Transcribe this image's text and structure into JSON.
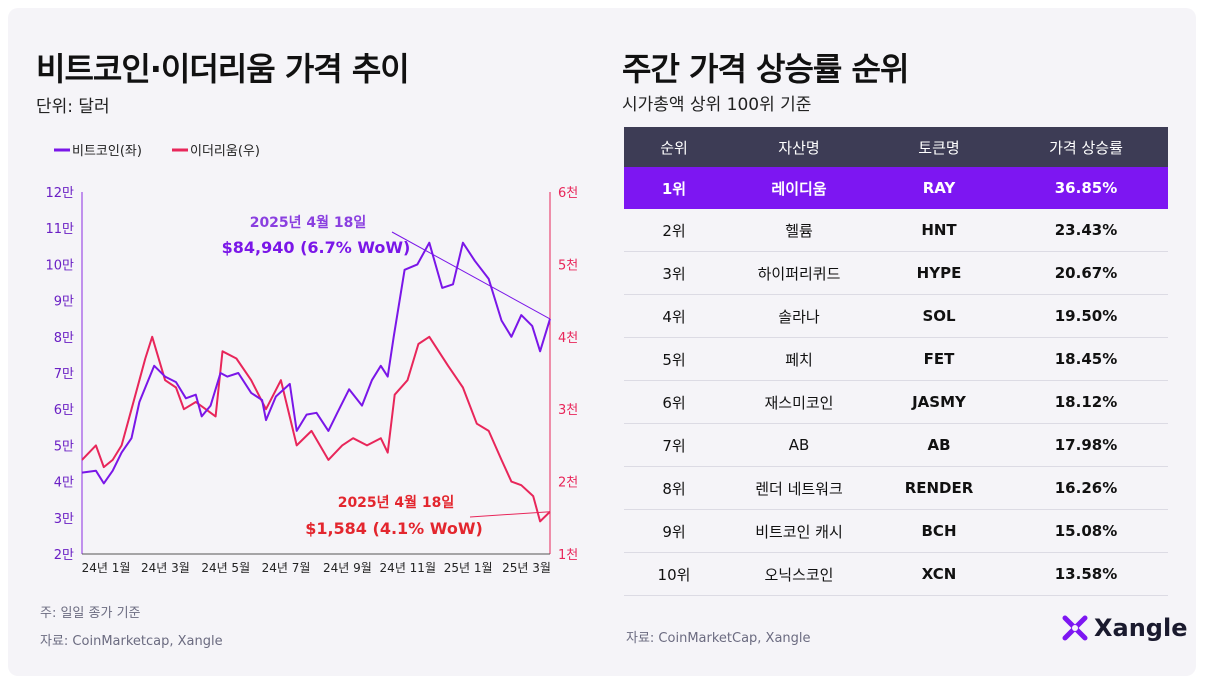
{
  "colors": {
    "btc": "#7a16e8",
    "eth": "#e8265a",
    "header_bg": "#3d3c55",
    "highlight": "#7d16f2"
  },
  "left": {
    "title": "비트코인·이더리움 가격 추이",
    "unit": "단위: 달러",
    "note": "주: 일일 종가 기준",
    "source": "자료: CoinMarketcap, Xangle"
  },
  "chart_data": {
    "type": "line",
    "title": "비트코인·이더리움 가격 추이",
    "x_tick_labels": [
      "24년 1월",
      "24년 3월",
      "24년 5월",
      "24년 7월",
      "24년 9월",
      "24년 11월",
      "25년 1월",
      "25년 3월"
    ],
    "y_left_ticks": [
      "2만",
      "3만",
      "4만",
      "5만",
      "6만",
      "7만",
      "8만",
      "9만",
      "10만",
      "11만",
      "12만"
    ],
    "y_left_range": [
      20000,
      120000
    ],
    "y_right_ticks": [
      "1천",
      "2천",
      "3천",
      "4천",
      "5천",
      "6천"
    ],
    "y_right_range": [
      1000,
      6000
    ],
    "legend": [
      {
        "name": "비트코인(좌)",
        "icon": "purple-line-icon"
      },
      {
        "name": "이더리움(우)",
        "icon": "pink-line-icon"
      }
    ],
    "series": [
      {
        "name": "비트코인(좌)",
        "axis": "left",
        "x": [
          "2024-01-01",
          "2024-01-15",
          "2024-01-23",
          "2024-02-01",
          "2024-02-10",
          "2024-02-20",
          "2024-02-28",
          "2024-03-05",
          "2024-03-14",
          "2024-03-25",
          "2024-04-05",
          "2024-04-15",
          "2024-04-25",
          "2024-05-01",
          "2024-05-10",
          "2024-05-20",
          "2024-05-27",
          "2024-06-07",
          "2024-06-20",
          "2024-07-01",
          "2024-07-05",
          "2024-07-15",
          "2024-07-29",
          "2024-08-05",
          "2024-08-15",
          "2024-08-25",
          "2024-09-06",
          "2024-09-15",
          "2024-09-27",
          "2024-10-10",
          "2024-10-20",
          "2024-10-29",
          "2024-11-05",
          "2024-11-11",
          "2024-11-22",
          "2024-12-05",
          "2024-12-17",
          "2024-12-30",
          "2025-01-10",
          "2025-01-20",
          "2025-02-01",
          "2025-02-15",
          "2025-02-28",
          "2025-03-10",
          "2025-03-20",
          "2025-03-31",
          "2025-04-08",
          "2025-04-18"
        ],
        "values": [
          42500,
          43000,
          39500,
          43000,
          48000,
          52000,
          62000,
          66000,
          72000,
          69000,
          67500,
          63000,
          64000,
          58000,
          61000,
          70000,
          69000,
          70000,
          64500,
          62500,
          57000,
          63500,
          67000,
          54000,
          58500,
          59000,
          54000,
          59000,
          65500,
          61000,
          68000,
          72000,
          69000,
          80000,
          98500,
          100000,
          106000,
          93500,
          94500,
          106000,
          101000,
          96000,
          84500,
          80000,
          86000,
          83000,
          76000,
          84940
        ]
      },
      {
        "name": "이더리움(우)",
        "axis": "right",
        "x": [
          "2024-01-01",
          "2024-01-15",
          "2024-01-23",
          "2024-02-01",
          "2024-02-10",
          "2024-02-20",
          "2024-02-28",
          "2024-03-05",
          "2024-03-12",
          "2024-03-25",
          "2024-04-05",
          "2024-04-13",
          "2024-04-25",
          "2024-05-05",
          "2024-05-15",
          "2024-05-22",
          "2024-06-05",
          "2024-06-20",
          "2024-07-05",
          "2024-07-20",
          "2024-08-05",
          "2024-08-20",
          "2024-09-06",
          "2024-09-20",
          "2024-10-01",
          "2024-10-15",
          "2024-10-29",
          "2024-11-05",
          "2024-11-12",
          "2024-11-25",
          "2024-12-06",
          "2024-12-17",
          "2025-01-05",
          "2025-01-20",
          "2025-02-03",
          "2025-02-15",
          "2025-02-28",
          "2025-03-10",
          "2025-03-20",
          "2025-04-01",
          "2025-04-08",
          "2025-04-18"
        ],
        "values": [
          2300,
          2500,
          2200,
          2300,
          2500,
          3000,
          3400,
          3700,
          4000,
          3400,
          3300,
          3000,
          3100,
          3000,
          2900,
          3800,
          3700,
          3400,
          3000,
          3400,
          2500,
          2700,
          2300,
          2500,
          2600,
          2500,
          2600,
          2400,
          3200,
          3400,
          3900,
          4000,
          3600,
          3300,
          2800,
          2700,
          2300,
          2000,
          1950,
          1800,
          1450,
          1584
        ]
      }
    ],
    "annotations": [
      {
        "date": "2025년 4월 18일",
        "value": "$84,940 (6.7% WoW)",
        "series": "비트코인(좌)"
      },
      {
        "date": "2025년 4월 18일",
        "value": "$1,584 (4.1% WoW)",
        "series": "이더리움(우)"
      }
    ],
    "grid": false
  },
  "right": {
    "title": "주간 가격 상승률 순위",
    "subtitle": "시가총액 상위 100위 기준",
    "source": "자료: CoinMarketCap, Xangle",
    "headers": [
      "순위",
      "자산명",
      "토큰명",
      "가격 상승률"
    ],
    "rows": [
      {
        "rank": "1위",
        "asset": "레이디움",
        "token": "RAY",
        "change": "36.85%"
      },
      {
        "rank": "2위",
        "asset": "헬륨",
        "token": "HNT",
        "change": "23.43%"
      },
      {
        "rank": "3위",
        "asset": "하이퍼리퀴드",
        "token": "HYPE",
        "change": "20.67%"
      },
      {
        "rank": "4위",
        "asset": "솔라나",
        "token": "SOL",
        "change": "19.50%"
      },
      {
        "rank": "5위",
        "asset": "페치",
        "token": "FET",
        "change": "18.45%"
      },
      {
        "rank": "6위",
        "asset": "재스미코인",
        "token": "JASMY",
        "change": "18.12%"
      },
      {
        "rank": "7위",
        "asset": "AB",
        "token": "AB",
        "change": "17.98%"
      },
      {
        "rank": "8위",
        "asset": "렌더 네트워크",
        "token": "RENDER",
        "change": "16.26%"
      },
      {
        "rank": "9위",
        "asset": "비트코인 캐시",
        "token": "BCH",
        "change": "15.08%"
      },
      {
        "rank": "10위",
        "asset": "오닉스코인",
        "token": "XCN",
        "change": "13.58%"
      }
    ]
  },
  "brand": {
    "name": "Xangle",
    "icon": "xangle-x-icon"
  }
}
